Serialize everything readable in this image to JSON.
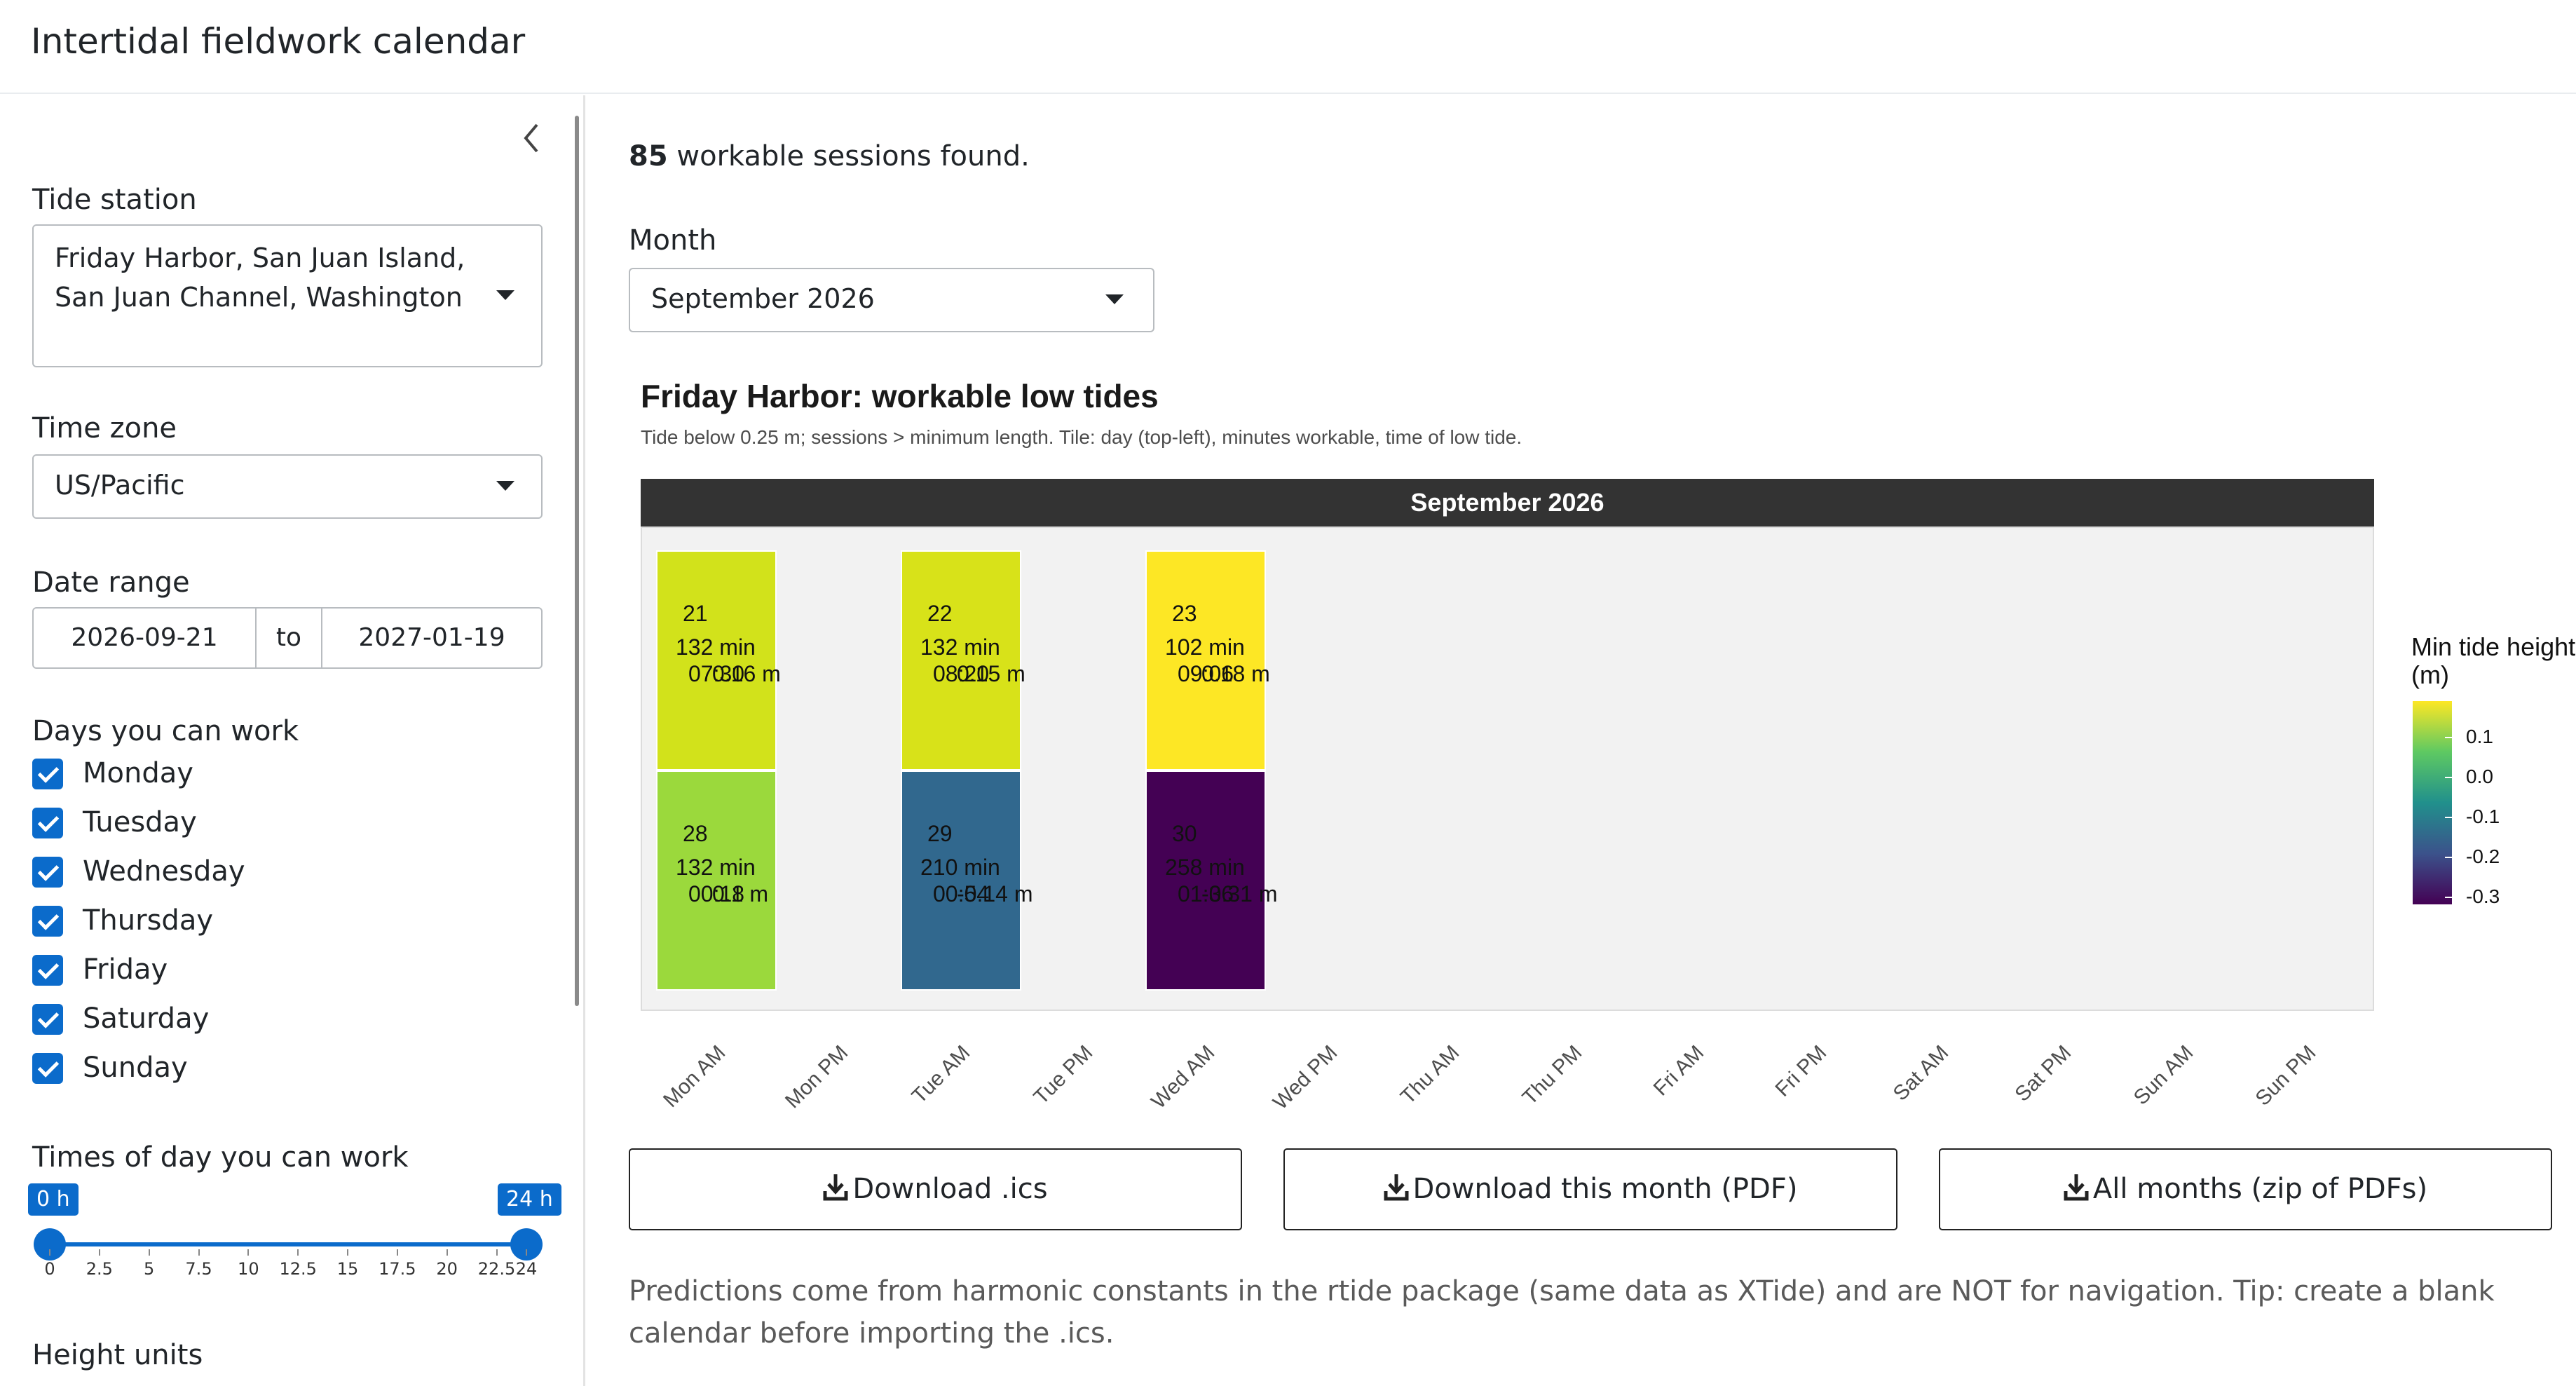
{
  "app": {
    "title": "Intertidal fieldwork calendar"
  },
  "sidebar": {
    "tide_station": {
      "label": "Tide station",
      "value": "Friday Harbor, San Juan Island, San Juan Channel, Washington"
    },
    "time_zone": {
      "label": "Time zone",
      "value": "US/Pacific"
    },
    "date_range": {
      "label": "Date range",
      "start": "2026-09-21",
      "sep": "to",
      "end": "2027-01-19"
    },
    "days": {
      "label": "Days you can work",
      "items": [
        {
          "label": "Monday",
          "checked": true
        },
        {
          "label": "Tuesday",
          "checked": true
        },
        {
          "label": "Wednesday",
          "checked": true
        },
        {
          "label": "Thursday",
          "checked": true
        },
        {
          "label": "Friday",
          "checked": true
        },
        {
          "label": "Saturday",
          "checked": true
        },
        {
          "label": "Sunday",
          "checked": true
        }
      ]
    },
    "times": {
      "label": "Times of day you can work",
      "min": 0,
      "max": 24,
      "low": 0,
      "high": 24,
      "low_label": "0 h",
      "high_label": "24 h",
      "ticks": [
        "0",
        "2.5",
        "5",
        "7.5",
        "10",
        "12.5",
        "15",
        "17.5",
        "20",
        "22.5",
        "24"
      ]
    },
    "height_units": {
      "label": "Height units"
    }
  },
  "main": {
    "summary_count": "85",
    "summary_text": " workable sessions found.",
    "month": {
      "label": "Month",
      "value": "September 2026"
    },
    "buttons": {
      "ics": "Download .ics",
      "pdf": "Download this month (PDF)",
      "zip": "All months (zip of PDFs)"
    },
    "footnote": "Predictions come from harmonic constants in the rtide package (same data as XTide) and are NOT for navigation. Tip: create a blank calendar before importing the .ics."
  },
  "chart_data": {
    "type": "heatmap",
    "title": "Friday Harbor: workable low tides",
    "subtitle": "Tide below 0.25 m; sessions > minimum length. Tile: day (top-left), minutes workable, time of low tide.",
    "facet": "September 2026",
    "x_categories": [
      "Mon AM",
      "Mon PM",
      "Tue AM",
      "Tue PM",
      "Wed AM",
      "Wed PM",
      "Thu AM",
      "Thu PM",
      "Fri AM",
      "Fri PM",
      "Sat AM",
      "Sat PM",
      "Sun AM",
      "Sun PM"
    ],
    "rows": 2,
    "tiles": [
      {
        "day": "21",
        "minutes": "132 min",
        "time": "07:30",
        "height_label": "0.16 m",
        "value": 0.16,
        "x": "Mon AM",
        "row": 1,
        "color": "#d2e21b"
      },
      {
        "day": "22",
        "minutes": "132 min",
        "time": "08:20",
        "height_label": "0.15 m",
        "value": 0.15,
        "x": "Tue AM",
        "row": 1,
        "color": "#d8e219"
      },
      {
        "day": "23",
        "minutes": "102 min",
        "time": "09:06",
        "height_label": "0.18 m",
        "value": 0.18,
        "x": "Wed AM",
        "row": 1,
        "color": "#fde725"
      },
      {
        "day": "28",
        "minutes": "132 min",
        "time": "00:18",
        "height_label": "0.1 m",
        "value": 0.1,
        "x": "Mon AM",
        "row": 2,
        "color": "#9bd93c"
      },
      {
        "day": "29",
        "minutes": "210 min",
        "time": "00:54",
        "height_label": "-0.14 m",
        "value": -0.14,
        "x": "Tue AM",
        "row": 2,
        "color": "#31688e"
      },
      {
        "day": "30",
        "minutes": "258 min",
        "time": "01:36",
        "height_label": "-0.31 m",
        "value": -0.31,
        "x": "Wed AM",
        "row": 2,
        "color": "#440154"
      }
    ],
    "legend": {
      "title": "Min tide height (m)",
      "ticks": [
        "0.1",
        "0.0",
        "-0.1",
        "-0.2",
        "-0.3"
      ],
      "range": [
        -0.32,
        0.19
      ],
      "placement": "right"
    }
  }
}
